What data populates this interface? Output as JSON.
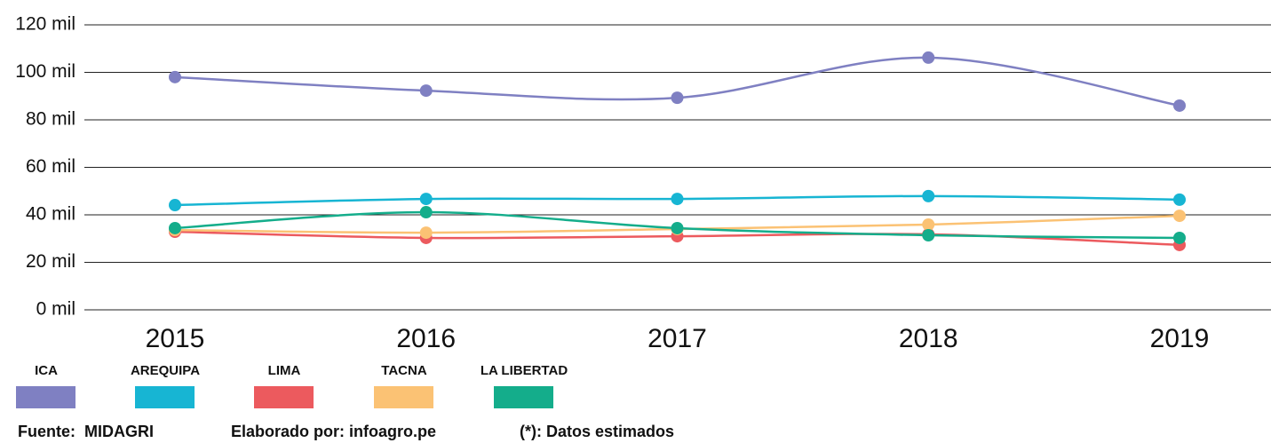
{
  "chart_data": {
    "type": "line",
    "categories": [
      "2015",
      "2016",
      "2017",
      "2018",
      "2019"
    ],
    "series": [
      {
        "name": "ICA",
        "color": "#7f80c2",
        "values": [
          98,
          92.3,
          89.3,
          106.2,
          86
        ]
      },
      {
        "name": "AREQUIPA",
        "color": "#17b5d3",
        "values": [
          44.1,
          46.7,
          46.7,
          47.9,
          46.4
        ]
      },
      {
        "name": "LIMA",
        "color": "#ec5a5e",
        "values": [
          32.9,
          30.3,
          31,
          31.8,
          27.3
        ]
      },
      {
        "name": "TACNA",
        "color": "#fbc274",
        "values": [
          33.6,
          32.5,
          34,
          35.9,
          39.6
        ]
      },
      {
        "name": "LA LIBERTAD",
        "color": "#14ad8b",
        "values": [
          34.4,
          41.1,
          34.4,
          31.4,
          30.3
        ]
      }
    ],
    "ylim": [
      0,
      120
    ],
    "yticks": [
      {
        "value": 0,
        "label": "0 mil"
      },
      {
        "value": 20,
        "label": "20 mil"
      },
      {
        "value": 40,
        "label": "40 mil"
      },
      {
        "value": 60,
        "label": "60 mil"
      },
      {
        "value": 80,
        "label": "80 mil"
      },
      {
        "value": 100,
        "label": "100 mil"
      },
      {
        "value": 120,
        "label": "120 mil"
      }
    ],
    "grid": true,
    "legend": "bottom-left",
    "annotations": [
      "Fuente:  MIDAGRI",
      "Elaborado por: infoagro.pe",
      "(*): Datos estimados"
    ]
  }
}
